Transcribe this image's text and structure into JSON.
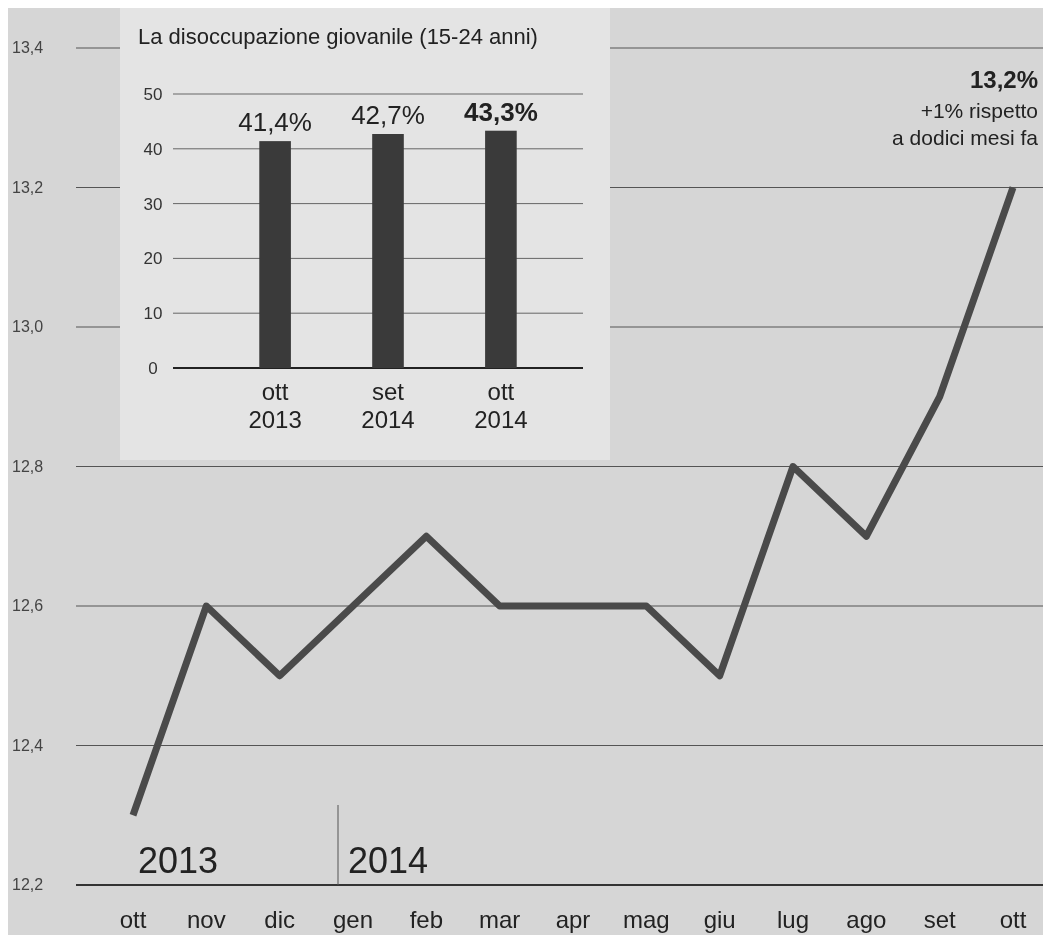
{
  "chart_data": [
    {
      "type": "line",
      "categories": [
        "ott",
        "nov",
        "dic",
        "gen",
        "feb",
        "mar",
        "apr",
        "mag",
        "giu",
        "lug",
        "ago",
        "set",
        "ott"
      ],
      "series": [
        {
          "color": "#4a4a4a",
          "values": [
            12.3,
            12.6,
            12.5,
            12.6,
            12.7,
            12.6,
            12.6,
            12.6,
            12.5,
            12.8,
            12.7,
            12.9,
            13.2
          ]
        }
      ],
      "ylim": [
        12.2,
        13.4
      ],
      "yticks": [
        {
          "value": 12.2,
          "label": "12,2"
        },
        {
          "value": 12.4,
          "label": "12,4"
        },
        {
          "value": 12.6,
          "label": "12,6"
        },
        {
          "value": 12.8,
          "label": "12,8"
        },
        {
          "value": 13.0,
          "label": "13,0"
        },
        {
          "value": 13.2,
          "label": "13,2"
        },
        {
          "value": 13.4,
          "label": "13,4"
        }
      ],
      "grid": "y",
      "marker": "none",
      "line_style": "solid",
      "annotations": [
        "2013",
        "2014",
        "13,2%",
        "+1% rispetto a dodici mesi fa"
      ]
    },
    {
      "type": "bar",
      "title": "La disoccupazione giovanile (15-24 anni)",
      "categories": [
        "ott 2013",
        "set 2014",
        "ott 2014"
      ],
      "values": [
        41.4,
        42.7,
        43.3
      ],
      "color": "#3a3a3a",
      "ylim": [
        0,
        50
      ],
      "yticks": [
        0,
        10,
        20,
        30,
        40,
        50
      ],
      "grid": "y",
      "value_labels": [
        "41,4%",
        "42,7%",
        "43,3%"
      ]
    }
  ]
}
